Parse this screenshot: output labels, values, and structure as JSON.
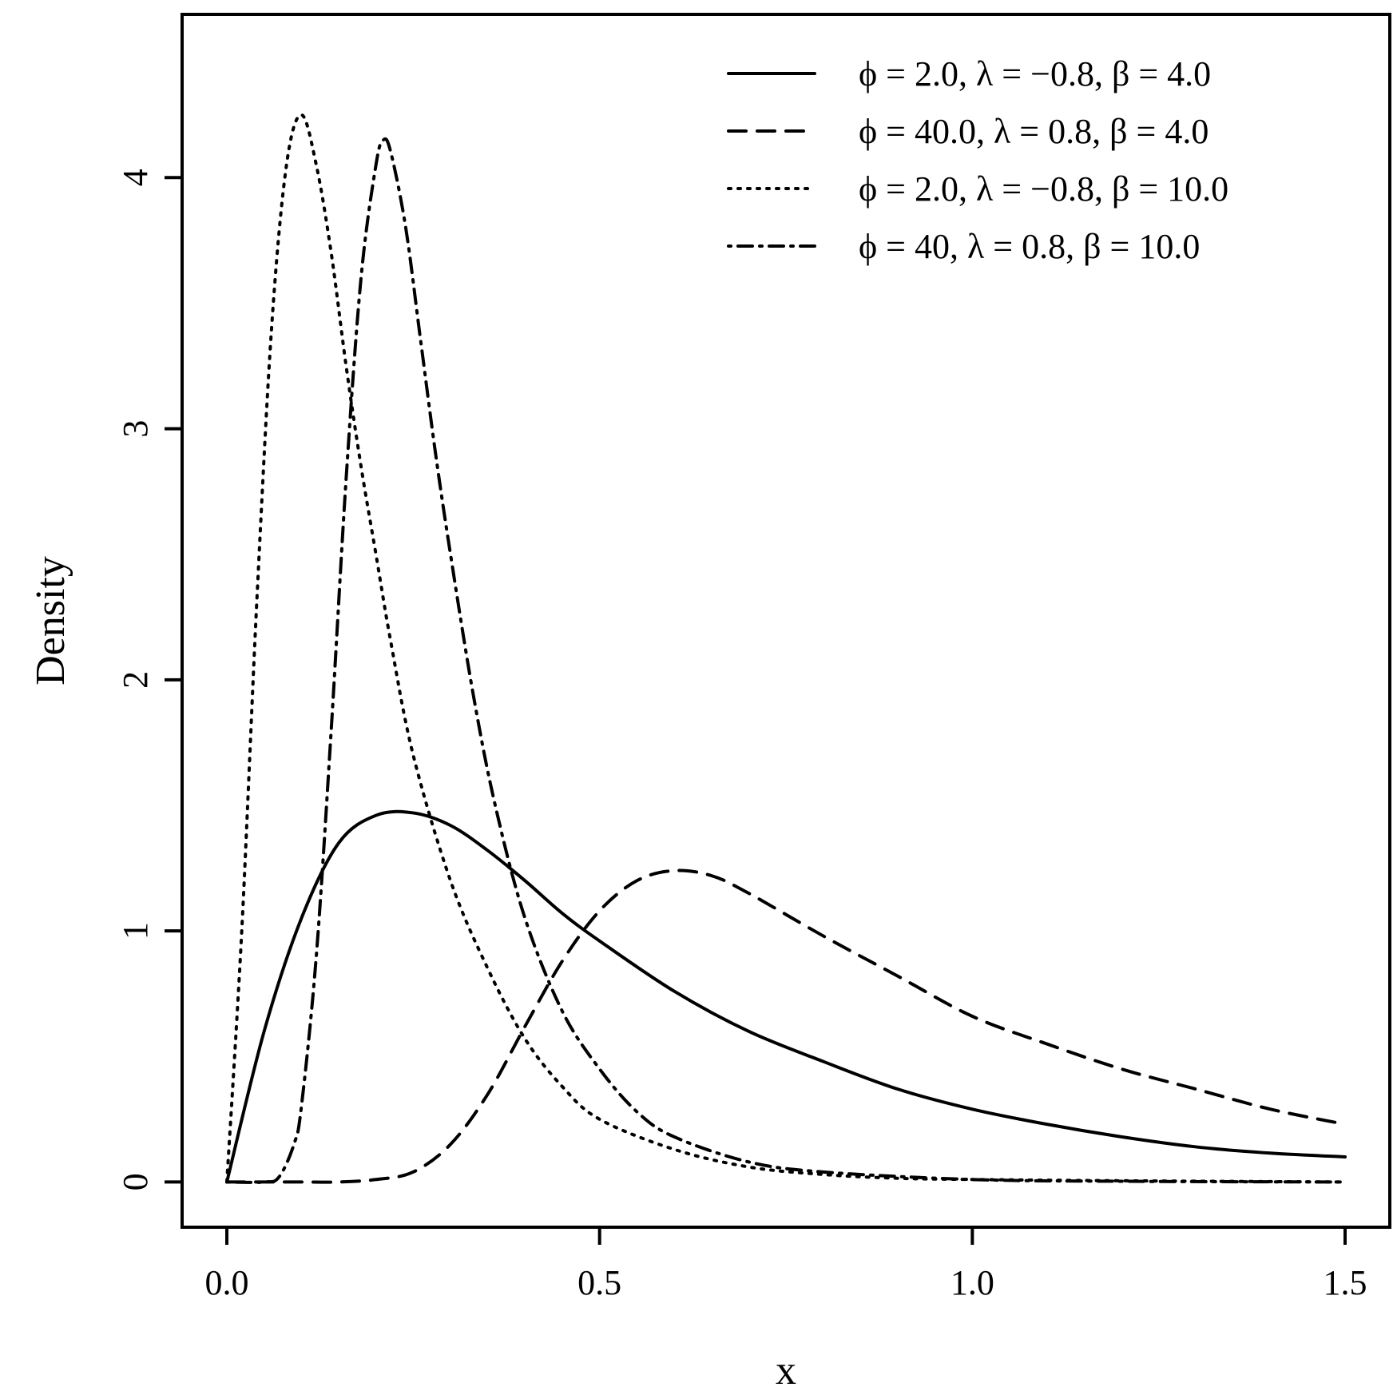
{
  "chart_data": {
    "type": "line",
    "xlabel": "x",
    "ylabel": "Density",
    "xlim": [
      -0.06,
      1.56
    ],
    "ylim": [
      -0.18,
      4.65
    ],
    "x_ticks": [
      0.0,
      0.5,
      1.0,
      1.5
    ],
    "x_tick_labels": [
      "0.0",
      "0.5",
      "1.0",
      "1.5"
    ],
    "y_ticks": [
      0,
      1,
      2,
      3,
      4
    ],
    "y_tick_labels": [
      "0",
      "1",
      "2",
      "3",
      "4"
    ],
    "grid": false,
    "legend_position": "top-right",
    "series": [
      {
        "name": "ϕ = 2.0, λ = −0.8, β = 4.0",
        "linestyle": "solid",
        "x": [
          0.0,
          0.05,
          0.1,
          0.15,
          0.2,
          0.25,
          0.3,
          0.35,
          0.4,
          0.45,
          0.5,
          0.6,
          0.7,
          0.8,
          0.9,
          1.0,
          1.1,
          1.2,
          1.3,
          1.4,
          1.5
        ],
        "y": [
          0.0,
          0.6,
          1.05,
          1.35,
          1.46,
          1.47,
          1.42,
          1.32,
          1.2,
          1.07,
          0.96,
          0.76,
          0.6,
          0.48,
          0.37,
          0.29,
          0.23,
          0.18,
          0.14,
          0.115,
          0.1
        ]
      },
      {
        "name": "ϕ = 40.0, λ = 0.8, β = 4.0",
        "linestyle": "dashed",
        "x": [
          0.0,
          0.05,
          0.1,
          0.15,
          0.2,
          0.25,
          0.3,
          0.35,
          0.4,
          0.45,
          0.5,
          0.55,
          0.6,
          0.65,
          0.7,
          0.8,
          0.9,
          1.0,
          1.1,
          1.2,
          1.3,
          1.4,
          1.5
        ],
        "y": [
          0.0,
          0.0,
          0.0,
          0.0,
          0.01,
          0.04,
          0.15,
          0.35,
          0.62,
          0.88,
          1.08,
          1.2,
          1.24,
          1.22,
          1.15,
          0.98,
          0.82,
          0.66,
          0.55,
          0.45,
          0.37,
          0.29,
          0.23
        ]
      },
      {
        "name": "ϕ = 2.0, λ = −0.8, β = 10.0",
        "linestyle": "dotted",
        "x": [
          0.0,
          0.02,
          0.04,
          0.06,
          0.08,
          0.1,
          0.12,
          0.14,
          0.16,
          0.18,
          0.2,
          0.22,
          0.25,
          0.3,
          0.35,
          0.4,
          0.45,
          0.5,
          0.6,
          0.7,
          0.8,
          0.9,
          1.0,
          1.2,
          1.5
        ],
        "y": [
          0.0,
          1.0,
          2.3,
          3.4,
          4.05,
          4.25,
          4.05,
          3.7,
          3.25,
          2.85,
          2.5,
          2.15,
          1.7,
          1.2,
          0.85,
          0.57,
          0.38,
          0.25,
          0.13,
          0.06,
          0.03,
          0.015,
          0.01,
          0.005,
          0.0
        ]
      },
      {
        "name": "ϕ = 40, λ = 0.8, β = 10.0",
        "linestyle": "dotdash",
        "x": [
          0.0,
          0.05,
          0.07,
          0.09,
          0.1,
          0.12,
          0.14,
          0.16,
          0.18,
          0.2,
          0.21,
          0.22,
          0.24,
          0.26,
          0.28,
          0.3,
          0.33,
          0.36,
          0.4,
          0.45,
          0.5,
          0.55,
          0.6,
          0.7,
          0.8,
          1.0,
          1.2,
          1.5
        ],
        "y": [
          0.0,
          0.0,
          0.02,
          0.15,
          0.3,
          0.9,
          1.8,
          2.8,
          3.6,
          4.05,
          4.15,
          4.1,
          3.8,
          3.35,
          2.9,
          2.5,
          1.95,
          1.5,
          1.05,
          0.68,
          0.45,
          0.28,
          0.18,
          0.08,
          0.04,
          0.01,
          0.003,
          0.0
        ]
      }
    ]
  }
}
